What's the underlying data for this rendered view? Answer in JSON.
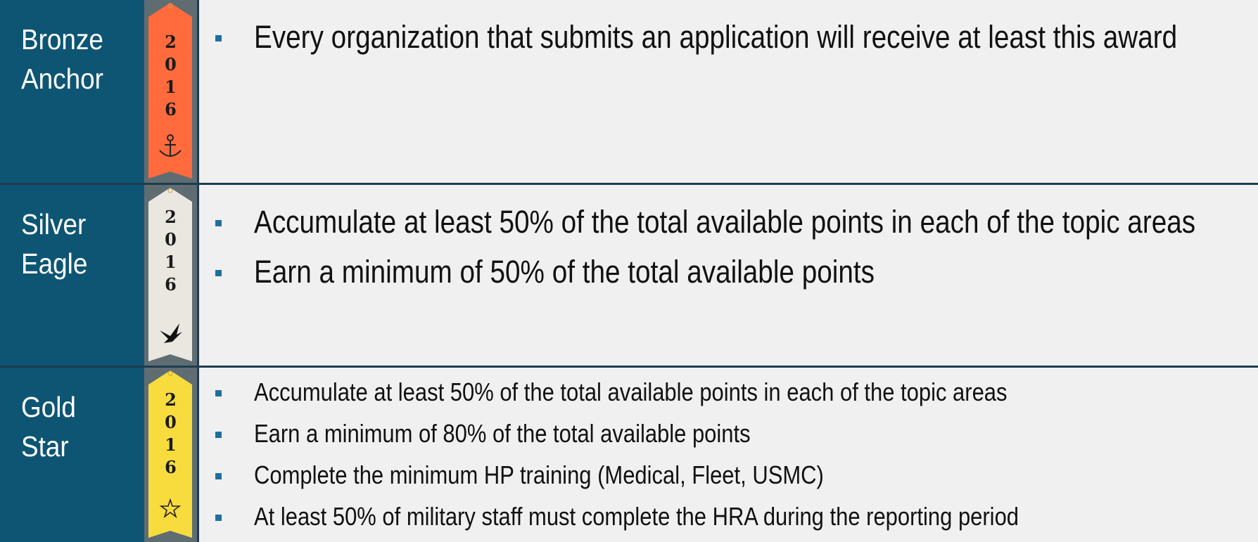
{
  "rows": [
    {
      "title": "Bronze Anchor",
      "ribbon_year": "2016",
      "ribbon_color": "#ff6b3d",
      "icon": "anchor",
      "bullets": [
        "Every organization that submits an application will receive at least this award"
      ]
    },
    {
      "title": "Silver Eagle",
      "ribbon_year": "2016",
      "ribbon_color": "#e9e7df",
      "icon": "eagle",
      "bullets": [
        "Accumulate at least 50% of the total available points in each of the topic areas",
        "Earn a minimum of 50% of the total available points"
      ]
    },
    {
      "title": "Gold Star",
      "ribbon_year": "2016",
      "ribbon_color": "#f8dc3e",
      "icon": "star",
      "bullets": [
        "Accumulate at least 50% of the total available points in each of the topic areas",
        "Earn a minimum of 80% of the total available points",
        "Complete the minimum HP training (Medical, Fleet, USMC)",
        "At least 50% of military staff must complete the HRA during the reporting period"
      ]
    }
  ]
}
